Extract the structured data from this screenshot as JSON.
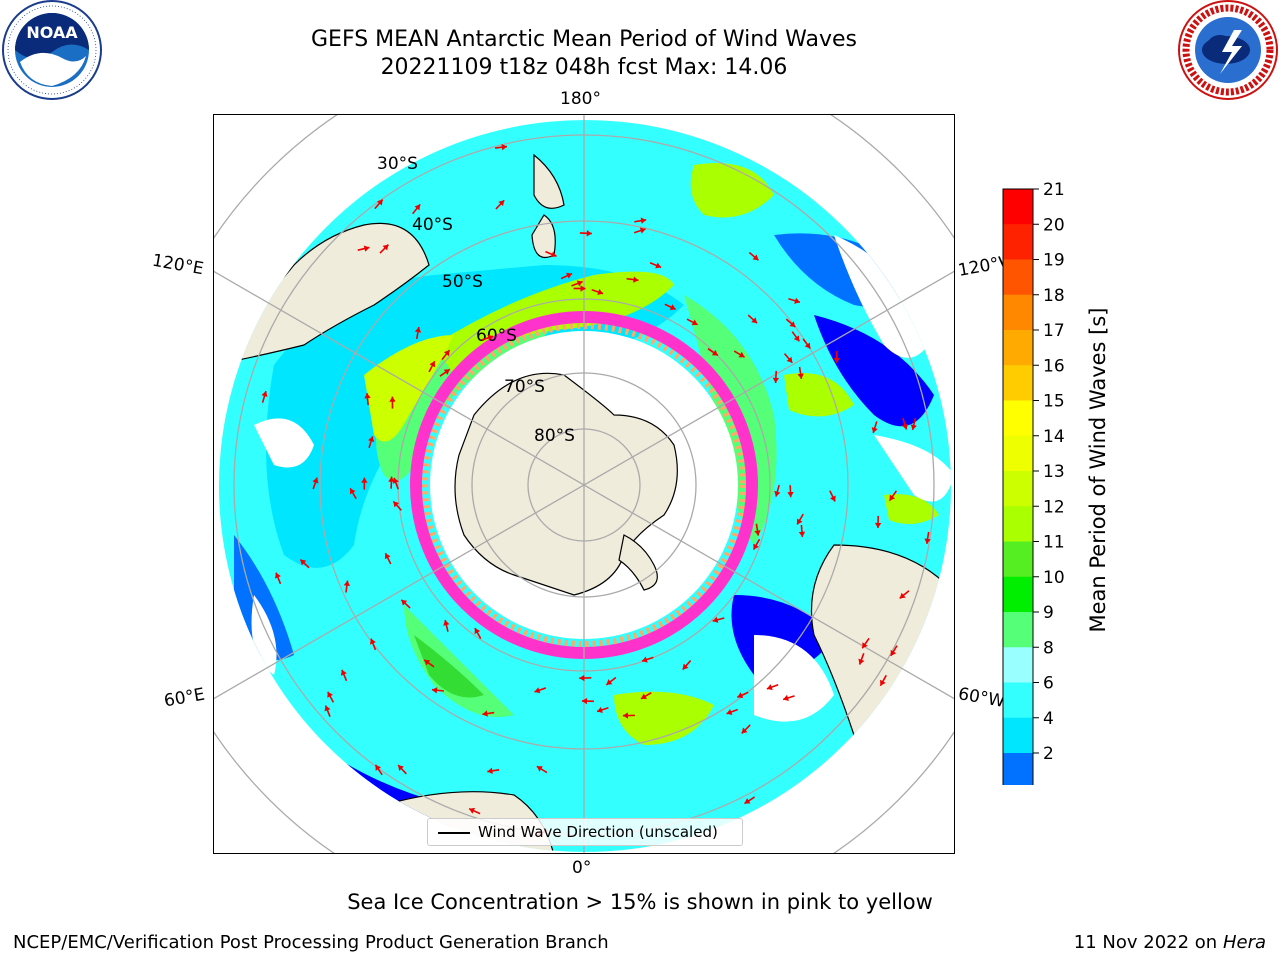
{
  "header": {
    "title_line1": "GEFS MEAN Antarctic Mean Period of Wind Waves",
    "title_line2": "20221109 t18z 048h fcst   Max: 14.06",
    "left_logo": "noaa-logo",
    "left_logo_text": "NOAA",
    "right_logo": "national-weather-service-logo",
    "right_logo_text": "NATIONAL WEATHER SERVICE"
  },
  "map": {
    "projection": "south-polar-stereographic",
    "longitude_labels": {
      "top": "180°",
      "bottom": "0°",
      "upper_left": "120°E",
      "upper_right": "120°W",
      "lower_left": "60°E",
      "lower_right": "60°W"
    },
    "latitude_labels": [
      "30°S",
      "40°S",
      "50°S",
      "60°S",
      "70°S",
      "80°S"
    ],
    "land_color": "#efecdc",
    "sea_ice_colors": [
      "#ff33cc",
      "#ffaa66",
      "#ffd24d"
    ],
    "vector_color": "#ee0000",
    "grid": true
  },
  "colorbar": {
    "label": "Mean Period of Wind Waves [s]",
    "ticks": [
      "2",
      "4",
      "6",
      "8",
      "9",
      "10",
      "11",
      "12",
      "13",
      "14",
      "15",
      "16",
      "17",
      "18",
      "19",
      "20",
      "21"
    ],
    "colors": [
      "#0000ff",
      "#0072ff",
      "#00e6ff",
      "#33ffff",
      "#99ffff",
      "#55ff77",
      "#00ee00",
      "#55ee22",
      "#aaff00",
      "#ccff00",
      "#eeff00",
      "#ffff00",
      "#ffcc00",
      "#ffaa00",
      "#ff8800",
      "#ff5500",
      "#ff2200",
      "#ff0000"
    ],
    "extend": "min"
  },
  "legend": {
    "entry": "Wind Wave Direction (unscaled)"
  },
  "caption": "Sea Ice Concentration > 15% is shown in pink to yellow",
  "footer": {
    "left": "NCEP/EMC/Verification Post Processing Product Generation Branch",
    "date": "11 Nov 2022 on",
    "host": "Hera"
  }
}
